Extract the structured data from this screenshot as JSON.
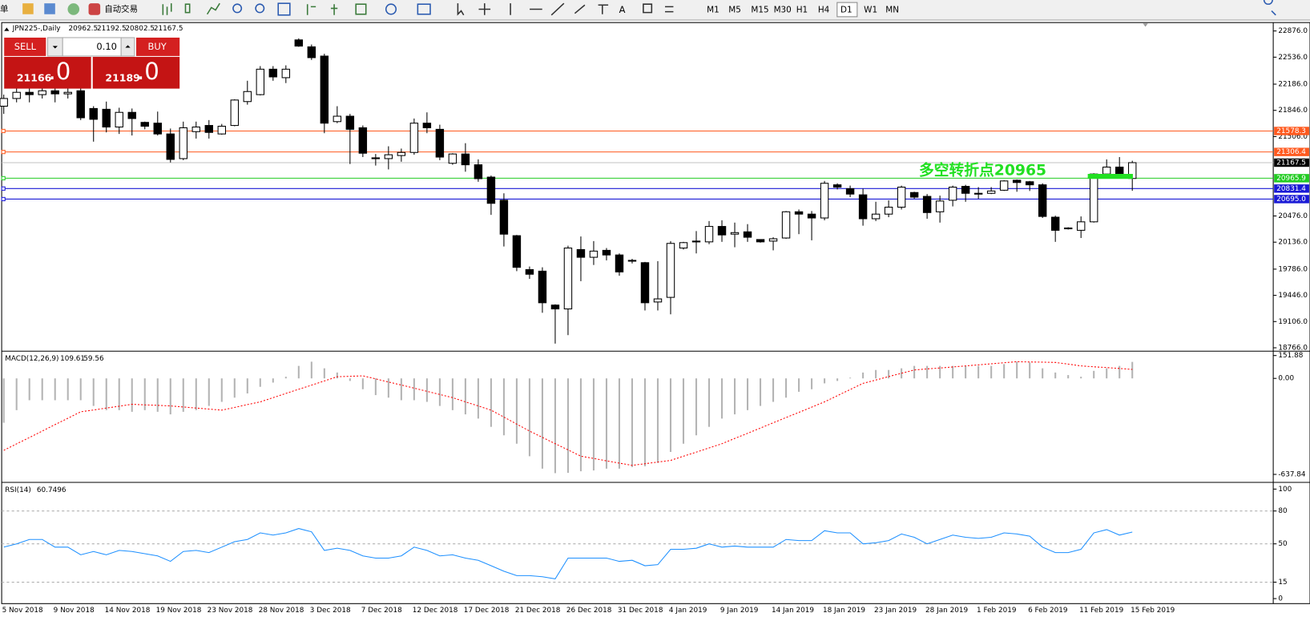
{
  "toolbar": {
    "cut_label": "单",
    "auto_trading": "自动交易",
    "timeframes": [
      "M1",
      "M5",
      "M15",
      "M30",
      "H1",
      "H4",
      "D1",
      "W1",
      "MN"
    ],
    "active_timeframe": 6
  },
  "trade_panel": {
    "sell": "SELL",
    "buy": "BUY",
    "lot": "0.10",
    "sell_price": "21166",
    "sell_price_fraction": ".0",
    "buy_price": "21189",
    "buy_price_fraction": ".0"
  },
  "chart_data": [
    {
      "type": "candlestick",
      "title": "JPN225-,Daily",
      "categories": [
        "5 Nov 2018",
        null,
        null,
        null,
        "9 Nov 2018",
        null,
        null,
        null,
        "14 Nov 2018",
        null,
        null,
        null,
        "19 Nov 2018",
        null,
        null,
        null,
        "23 Nov 2018",
        null,
        null,
        null,
        "28 Nov 2018",
        null,
        null,
        null,
        "3 Dec 2018",
        null,
        null,
        null,
        "7 Dec 2018",
        null,
        null,
        null,
        "12 Dec 2018",
        null,
        null,
        null,
        "17 Dec 2018",
        null,
        null,
        null,
        "21 Dec 2018",
        null,
        null,
        null,
        "26 Dec 2018",
        null,
        null,
        null,
        "31 Dec 2018",
        null,
        null,
        null,
        "4 Jan 2019",
        null,
        null,
        null,
        "9 Jan 2019",
        null,
        null,
        null,
        "14 Jan 2019",
        null,
        null,
        null,
        "18 Jan 2019",
        null,
        null,
        null,
        "23 Jan 2019",
        null,
        null,
        null,
        "28 Jan 2019",
        null,
        null,
        null,
        "1 Feb 2019",
        null,
        null,
        null,
        "6 Feb 2019",
        null,
        null,
        null,
        "11 Feb 2019",
        null,
        null,
        null,
        "15 Feb 2019"
      ],
      "open": [
        21900,
        22000,
        22080,
        22050,
        22100,
        22060,
        22100,
        21870,
        21860,
        21630,
        21820,
        21690,
        21680,
        21540,
        21220,
        21570,
        21650,
        21540,
        21650,
        21960,
        22050,
        22380,
        22270,
        22760,
        22670,
        22550,
        21700,
        21770,
        21620,
        21220,
        21220,
        21260,
        21300,
        21680,
        21600,
        21160,
        21280,
        21140,
        20980,
        20680,
        20220,
        19780,
        19760,
        19320,
        19270,
        20040,
        19940,
        20030,
        19970,
        19900,
        19870,
        19360,
        19420,
        20060,
        20140,
        20140,
        20340,
        20240,
        20270,
        20170,
        20150,
        20190,
        20530,
        20500,
        20450,
        20880,
        20830,
        20750,
        20440,
        20500,
        20590,
        20780,
        20730,
        20530,
        20680,
        20860,
        20760,
        20770,
        20810,
        20940,
        20920,
        20880,
        20460,
        20320,
        20290,
        20400,
        21020,
        21110,
        20962.5
      ],
      "high": [
        22050,
        22150,
        22200,
        22250,
        22200,
        22300,
        22150,
        21900,
        21960,
        21880,
        21870,
        21700,
        21830,
        21610,
        21700,
        21700,
        21720,
        21670,
        21990,
        22230,
        22420,
        22420,
        22430,
        22780,
        22700,
        22580,
        21900,
        21800,
        21650,
        21280,
        21380,
        21350,
        21740,
        21820,
        21660,
        21290,
        21420,
        21210,
        21000,
        20770,
        20230,
        19820,
        19810,
        19330,
        20090,
        20210,
        20150,
        20060,
        19990,
        19920,
        19880,
        19890,
        20150,
        20140,
        20280,
        20410,
        20420,
        20390,
        20370,
        20170,
        20200,
        20540,
        20560,
        20540,
        20930,
        20900,
        20870,
        20830,
        20660,
        20680,
        20870,
        20790,
        20760,
        20740,
        20870,
        20880,
        20850,
        20850,
        20940,
        20950,
        20930,
        20900,
        20480,
        20330,
        20470,
        21030,
        21210,
        21240,
        21192.5
      ],
      "low": [
        21800,
        21950,
        21950,
        22000,
        21950,
        22000,
        21720,
        21440,
        21560,
        21540,
        21520,
        21600,
        21520,
        21170,
        21200,
        21480,
        21480,
        21530,
        21640,
        21920,
        22040,
        22230,
        22200,
        22670,
        22500,
        21550,
        21680,
        21150,
        21240,
        21130,
        21080,
        21180,
        21270,
        21550,
        21200,
        21140,
        21050,
        20920,
        20490,
        20080,
        19760,
        19660,
        19220,
        18820,
        18930,
        19630,
        19840,
        19900,
        19700,
        19860,
        19250,
        19250,
        19200,
        20040,
        19990,
        20110,
        20140,
        20070,
        20140,
        20130,
        20030,
        20180,
        20240,
        20160,
        20420,
        20820,
        20720,
        20350,
        20410,
        20460,
        20560,
        20700,
        20440,
        20390,
        20600,
        20660,
        20700,
        20760,
        20800,
        20790,
        20800,
        20450,
        20140,
        20300,
        20190,
        20390,
        20980,
        20990,
        20802.5
      ],
      "close": [
        22000,
        22080,
        22050,
        22100,
        22060,
        22080,
        21750,
        21730,
        21630,
        21820,
        21740,
        21640,
        21540,
        21210,
        21620,
        21630,
        21560,
        21640,
        21980,
        22090,
        22380,
        22280,
        22380,
        22680,
        22530,
        21680,
        21770,
        21600,
        21290,
        21230,
        21270,
        21300,
        21680,
        21620,
        21240,
        21280,
        21140,
        20960,
        20640,
        20240,
        19810,
        19720,
        19350,
        19270,
        20060,
        19940,
        20020,
        19970,
        19750,
        19890,
        19350,
        19400,
        20120,
        20130,
        20150,
        20340,
        20230,
        20260,
        20200,
        20140,
        20180,
        20530,
        20500,
        20450,
        20900,
        20850,
        20760,
        20440,
        20500,
        20590,
        20850,
        20720,
        20520,
        20670,
        20850,
        20770,
        20770,
        20800,
        20930,
        20910,
        20880,
        20470,
        20290,
        20310,
        20400,
        21020,
        21110,
        21020,
        21167.5
      ],
      "up_color": "#ffffff",
      "down_color": "#000000",
      "ylim": [
        18744,
        22974
      ],
      "yticks": [
        {
          "value": 22876,
          "label": "22876.0"
        },
        {
          "value": 22536,
          "label": "22536.0"
        },
        {
          "value": 22186,
          "label": "22186.0"
        },
        {
          "value": 21846,
          "label": "21846.0"
        },
        {
          "value": 21506,
          "label": "21506.0"
        },
        {
          "value": 20476,
          "label": "20476.0"
        },
        {
          "value": 20136,
          "label": "20136.0"
        },
        {
          "value": 19786,
          "label": "19786.0"
        },
        {
          "value": 19446,
          "label": "19446.0"
        },
        {
          "value": 19106,
          "label": "19106.0"
        },
        {
          "value": 18766,
          "label": "18766.0"
        }
      ],
      "levels": [
        {
          "value": 21578.3,
          "color": "#ff5a1f"
        },
        {
          "value": 21306.4,
          "color": "#ff5a1f"
        },
        {
          "value": 20965.9,
          "color": "#22cc22"
        },
        {
          "value": 20831.4,
          "color": "#1a1ad6"
        },
        {
          "value": 20695.0,
          "label": "20695.0",
          "color": "#1a1ad6"
        }
      ],
      "annotation": "多空转折点20965",
      "annotation_color": "#22e022"
    },
    {
      "type": "macd",
      "title": "MACD(12,26,9)",
      "histogram": {
        "color": "#b4b4b4",
        "values": [
          -295,
          -211,
          -145,
          -145,
          -145,
          -145,
          -145,
          -183,
          -211,
          -211,
          -222,
          -211,
          -222,
          -239,
          -222,
          -211,
          -183,
          -156,
          -128,
          -100,
          -56,
          -28,
          11,
          83,
          111,
          67,
          39,
          -17,
          -72,
          -111,
          -128,
          -145,
          -145,
          -156,
          -183,
          -211,
          -239,
          -267,
          -322,
          -378,
          -434,
          -517,
          -600,
          -630,
          -628,
          -617,
          -612,
          -600,
          -600,
          -589,
          -584,
          -561,
          -489,
          -434,
          -378,
          -322,
          -267,
          -239,
          -211,
          -183,
          -156,
          -128,
          -89,
          -72,
          -33,
          -17,
          5,
          39,
          56,
          56,
          67,
          83,
          83,
          83,
          83,
          83,
          83,
          83,
          95,
          111,
          106,
          67,
          39,
          22,
          11,
          50,
          67,
          83,
          109.61
        ]
      },
      "signal": {
        "color": "#ff0000",
        "values": [
          -478,
          -435,
          -393,
          -350,
          -307,
          -265,
          -222,
          -210,
          -197,
          -185,
          -172,
          -176,
          -179,
          -183,
          -190,
          -197,
          -204,
          -211,
          -193,
          -174,
          -156,
          -128,
          -100,
          -72,
          -45,
          -17,
          11,
          14,
          17,
          -3,
          -24,
          -44,
          -65,
          -86,
          -107,
          -128,
          -156,
          -183,
          -211,
          -257,
          -304,
          -350,
          -392,
          -434,
          -475,
          -517,
          -532,
          -548,
          -563,
          -578,
          -567,
          -556,
          -545,
          -517,
          -490,
          -462,
          -434,
          -399,
          -365,
          -330,
          -295,
          -260,
          -226,
          -191,
          -156,
          -115,
          -74,
          -33,
          -11,
          12,
          34,
          56,
          63,
          69,
          76,
          83,
          90,
          97,
          104,
          111,
          109,
          108,
          106,
          95,
          83,
          77,
          72,
          66,
          59.56
        ]
      },
      "ylim": [
        -680,
        170
      ],
      "yticks": [
        151.88,
        {
          "value": 0,
          "label": "0.00"
        },
        -637.84
      ]
    },
    {
      "type": "line",
      "title": "RSI(14)",
      "color": "#1e90ff",
      "values": [
        47,
        50,
        54,
        54,
        47,
        47,
        40,
        43,
        40,
        44,
        43,
        41,
        39,
        34,
        43,
        44,
        42,
        47,
        52,
        54,
        60,
        58,
        60,
        64,
        61,
        44,
        46,
        44,
        39,
        37,
        37,
        39,
        47,
        44,
        39,
        40,
        37,
        35,
        30,
        25,
        21,
        21,
        20,
        18,
        37,
        37,
        37,
        37,
        34,
        35,
        30,
        31,
        45,
        45,
        46,
        50,
        47,
        48,
        47,
        47,
        47,
        54,
        53,
        53,
        62,
        60,
        60,
        50,
        51,
        53,
        59,
        56,
        50,
        54,
        58,
        56,
        55,
        56,
        60,
        59,
        57,
        47,
        42,
        42,
        45,
        60,
        63,
        58,
        60.7496
      ],
      "ylim": [
        0,
        100
      ],
      "yticks": [
        100,
        80,
        50,
        15,
        0
      ],
      "grid": true
    }
  ]
}
